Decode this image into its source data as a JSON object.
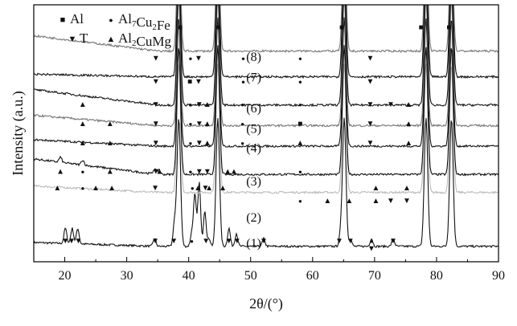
{
  "chart_data": {
    "type": "line",
    "xlabel": "2θ/(°)",
    "ylabel": "Intensity (a.u.)",
    "xlim": [
      15,
      90
    ],
    "xticks": [
      20,
      30,
      40,
      50,
      60,
      70,
      80,
      90
    ],
    "yticks_shown": false,
    "legend": {
      "placement": "top-left",
      "items": [
        {
          "symbol": "■",
          "label": "Al"
        },
        {
          "symbol": "●",
          "label": "Al7Cu2Fe"
        },
        {
          "symbol": "▼",
          "label": "T"
        },
        {
          "symbol": "▲",
          "label": "Al2CuMg"
        }
      ]
    },
    "series": [
      {
        "name": "(1)",
        "baseline_rel": 0.06,
        "color": "#111111",
        "slope": 0.03,
        "peaks": [
          [
            20.1,
            0.06
          ],
          [
            21.2,
            0.06
          ],
          [
            22.1,
            0.06
          ],
          [
            34.5,
            0.03
          ],
          [
            37.7,
            0.09
          ],
          [
            38.4,
            0.5
          ],
          [
            40.5,
            0.05
          ],
          [
            41.0,
            0.2
          ],
          [
            41.7,
            0.25
          ],
          [
            42.6,
            0.14
          ],
          [
            43.3,
            0.03
          ],
          [
            44.7,
            0.5
          ],
          [
            46.5,
            0.07
          ],
          [
            47.7,
            0.05
          ],
          [
            52.1,
            0.03
          ],
          [
            64.5,
            0.04
          ],
          [
            65.1,
            0.5
          ],
          [
            66.1,
            0.03
          ],
          [
            69.5,
            0.03
          ],
          [
            73.0,
            0.03
          ],
          [
            78.3,
            0.5
          ],
          [
            82.4,
            0.5
          ]
        ]
      },
      {
        "name": "(2)",
        "baseline_rel": 0.27,
        "color": "#bbbbbb",
        "slope": 0.05,
        "peaks": [
          [
            38.4,
            0.5
          ],
          [
            44.7,
            0.5
          ],
          [
            65.1,
            0.5
          ],
          [
            78.3,
            0.5
          ],
          [
            82.4,
            0.5
          ]
        ]
      },
      {
        "name": "(3)",
        "baseline_rel": 0.34,
        "color": "#111111",
        "slope": 0.12,
        "peaks": [
          [
            19.3,
            0.02
          ],
          [
            22.9,
            0.02
          ],
          [
            34.5,
            0.02
          ],
          [
            35.2,
            0.02
          ],
          [
            38.4,
            0.5
          ],
          [
            44.7,
            0.5
          ],
          [
            65.1,
            0.5
          ],
          [
            78.3,
            0.5
          ],
          [
            82.4,
            0.5
          ]
        ]
      },
      {
        "name": "(4)",
        "baseline_rel": 0.45,
        "color": "#111111",
        "slope": 0.05,
        "peaks": [
          [
            38.4,
            0.5
          ],
          [
            44.7,
            0.5
          ],
          [
            65.1,
            0.5
          ],
          [
            78.3,
            0.5
          ],
          [
            82.4,
            0.5
          ]
        ]
      },
      {
        "name": "(5)",
        "baseline_rel": 0.53,
        "color": "#777777",
        "slope": 0.08,
        "peaks": [
          [
            38.4,
            0.5
          ],
          [
            44.7,
            0.5
          ],
          [
            65.1,
            0.5
          ],
          [
            78.3,
            0.5
          ],
          [
            82.4,
            0.5
          ]
        ]
      },
      {
        "name": "(6)",
        "baseline_rel": 0.61,
        "color": "#111111",
        "slope": 0.12,
        "peaks": [
          [
            38.4,
            0.5
          ],
          [
            44.7,
            0.5
          ],
          [
            65.1,
            0.5
          ],
          [
            78.3,
            0.5
          ],
          [
            82.4,
            0.5
          ]
        ]
      },
      {
        "name": "(7)",
        "baseline_rel": 0.72,
        "color": "#111111",
        "slope": 0.02,
        "peaks": [
          [
            38.4,
            0.5
          ],
          [
            44.7,
            0.5
          ],
          [
            65.1,
            0.5
          ],
          [
            78.3,
            0.5
          ],
          [
            82.4,
            0.5
          ]
        ]
      },
      {
        "name": "(8)",
        "baseline_rel": 0.82,
        "color": "#777777",
        "slope": 0.12,
        "peaks": [
          [
            38.4,
            0.5
          ],
          [
            44.7,
            0.5
          ],
          [
            65.1,
            0.5
          ],
          [
            78.3,
            0.5
          ],
          [
            82.4,
            0.5
          ]
        ]
      }
    ],
    "markers": [
      {
        "symbol": "■",
        "x": 38.6,
        "row": "top"
      },
      {
        "symbol": "■",
        "x": 44.8,
        "row": "top"
      },
      {
        "symbol": "■",
        "x": 64.7,
        "row": "top"
      },
      {
        "symbol": "■",
        "x": 77.5,
        "row": "top"
      },
      {
        "symbol": "■",
        "x": 82.0,
        "row": "top"
      },
      {
        "symbol": "▼",
        "x": 34.7,
        "row": "8"
      },
      {
        "symbol": "●",
        "x": 40.3,
        "row": "8"
      },
      {
        "symbol": "▼",
        "x": 41.6,
        "row": "8"
      },
      {
        "symbol": "●",
        "x": 48.8,
        "row": "8"
      },
      {
        "symbol": "●",
        "x": 58.0,
        "row": "8"
      },
      {
        "symbol": "▼",
        "x": 69.3,
        "row": "8"
      },
      {
        "symbol": "▼",
        "x": 34.7,
        "row": "7"
      },
      {
        "symbol": "■",
        "x": 40.2,
        "row": "7"
      },
      {
        "symbol": "▼",
        "x": 41.6,
        "row": "7"
      },
      {
        "symbol": "●",
        "x": 48.8,
        "row": "7"
      },
      {
        "symbol": "●",
        "x": 58.0,
        "row": "7"
      },
      {
        "symbol": "▼",
        "x": 69.3,
        "row": "7"
      },
      {
        "symbol": "▲",
        "x": 22.9,
        "row": "6"
      },
      {
        "symbol": "▼",
        "x": 34.7,
        "row": "6"
      },
      {
        "symbol": "●",
        "x": 40.3,
        "row": "6"
      },
      {
        "symbol": "▼",
        "x": 41.7,
        "row": "6"
      },
      {
        "symbol": "▲",
        "x": 43.0,
        "row": "6"
      },
      {
        "symbol": "●",
        "x": 48.7,
        "row": "6"
      },
      {
        "symbol": "●",
        "x": 58.0,
        "row": "6"
      },
      {
        "symbol": "▼",
        "x": 69.3,
        "row": "6"
      },
      {
        "symbol": "▼",
        "x": 72.6,
        "row": "6"
      },
      {
        "symbol": "▲",
        "x": 75.5,
        "row": "6"
      },
      {
        "symbol": "▲",
        "x": 22.9,
        "row": "5"
      },
      {
        "symbol": "▲",
        "x": 27.3,
        "row": "5"
      },
      {
        "symbol": "▼",
        "x": 34.7,
        "row": "5"
      },
      {
        "symbol": "●",
        "x": 40.3,
        "row": "5"
      },
      {
        "symbol": "▼",
        "x": 41.7,
        "row": "5"
      },
      {
        "symbol": "▲",
        "x": 43.0,
        "row": "5"
      },
      {
        "symbol": "●",
        "x": 48.7,
        "row": "5"
      },
      {
        "symbol": "■",
        "x": 58.0,
        "row": "5"
      },
      {
        "symbol": "▼",
        "x": 69.3,
        "row": "5"
      },
      {
        "symbol": "▲",
        "x": 75.5,
        "row": "5"
      },
      {
        "symbol": "▲",
        "x": 22.9,
        "row": "4"
      },
      {
        "symbol": "▲",
        "x": 27.3,
        "row": "4"
      },
      {
        "symbol": "▼",
        "x": 34.7,
        "row": "4"
      },
      {
        "symbol": "●",
        "x": 40.3,
        "row": "4"
      },
      {
        "symbol": "▼",
        "x": 41.7,
        "row": "4"
      },
      {
        "symbol": "▲",
        "x": 43.0,
        "row": "4"
      },
      {
        "symbol": "●",
        "x": 48.7,
        "row": "4"
      },
      {
        "symbol": "▲",
        "x": 58.0,
        "row": "4"
      },
      {
        "symbol": "▼",
        "x": 69.3,
        "row": "4"
      },
      {
        "symbol": "▲",
        "x": 75.5,
        "row": "4"
      },
      {
        "symbol": "▲",
        "x": 19.3,
        "row": "3"
      },
      {
        "symbol": "●",
        "x": 22.9,
        "row": "3"
      },
      {
        "symbol": "▲",
        "x": 27.3,
        "row": "3"
      },
      {
        "symbol": "▼",
        "x": 34.7,
        "row": "3"
      },
      {
        "symbol": "▲",
        "x": 35.3,
        "row": "3"
      },
      {
        "symbol": "●",
        "x": 40.3,
        "row": "3"
      },
      {
        "symbol": "▼",
        "x": 41.7,
        "row": "3"
      },
      {
        "symbol": "▼",
        "x": 43.0,
        "row": "3"
      },
      {
        "symbol": "▲",
        "x": 46.3,
        "row": "3"
      },
      {
        "symbol": "▲",
        "x": 47.3,
        "row": "3"
      },
      {
        "symbol": "●",
        "x": 58.0,
        "row": "3"
      },
      {
        "symbol": "▲",
        "x": 18.8,
        "row": "3b"
      },
      {
        "symbol": "●",
        "x": 22.9,
        "row": "3b"
      },
      {
        "symbol": "▲",
        "x": 25.0,
        "row": "3b"
      },
      {
        "symbol": "▲",
        "x": 27.6,
        "row": "3b"
      },
      {
        "symbol": "▼",
        "x": 34.6,
        "row": "3b"
      },
      {
        "symbol": "●",
        "x": 40.6,
        "row": "3b"
      },
      {
        "symbol": "▲",
        "x": 41.5,
        "row": "3b"
      },
      {
        "symbol": "▼",
        "x": 42.7,
        "row": "3b"
      },
      {
        "symbol": "▲",
        "x": 43.3,
        "row": "3b"
      },
      {
        "symbol": "▲",
        "x": 45.5,
        "row": "3b"
      },
      {
        "symbol": "▲",
        "x": 70.2,
        "row": "3b"
      },
      {
        "symbol": "▲",
        "x": 75.2,
        "row": "3b"
      },
      {
        "symbol": "●",
        "x": 58.0,
        "row": "2"
      },
      {
        "symbol": "▲",
        "x": 62.4,
        "row": "2"
      },
      {
        "symbol": "▲",
        "x": 65.9,
        "row": "2"
      },
      {
        "symbol": "▲",
        "x": 70.2,
        "row": "2"
      },
      {
        "symbol": "▼",
        "x": 72.6,
        "row": "2"
      },
      {
        "symbol": "▼",
        "x": 75.2,
        "row": "2"
      },
      {
        "symbol": "▼",
        "x": 20.1,
        "row": "1"
      },
      {
        "symbol": "▼",
        "x": 21.1,
        "row": "1"
      },
      {
        "symbol": "▼",
        "x": 22.2,
        "row": "1"
      },
      {
        "symbol": "▼",
        "x": 37.6,
        "row": "1"
      },
      {
        "symbol": "●",
        "x": 40.5,
        "row": "1"
      },
      {
        "symbol": "▼",
        "x": 34.6,
        "row": "1"
      },
      {
        "symbol": "▼",
        "x": 42.8,
        "row": "1"
      },
      {
        "symbol": "▼",
        "x": 46.5,
        "row": "1"
      },
      {
        "symbol": "▼",
        "x": 47.8,
        "row": "1"
      },
      {
        "symbol": "▼",
        "x": 52.1,
        "row": "1"
      },
      {
        "symbol": "▼",
        "x": 64.3,
        "row": "1"
      },
      {
        "symbol": "▼",
        "x": 66.1,
        "row": "1"
      },
      {
        "symbol": "●",
        "x": 69.5,
        "row": "1"
      },
      {
        "symbol": "▼",
        "x": 69.5,
        "row": "1b"
      },
      {
        "symbol": "▼",
        "x": 73.0,
        "row": "1"
      }
    ]
  }
}
